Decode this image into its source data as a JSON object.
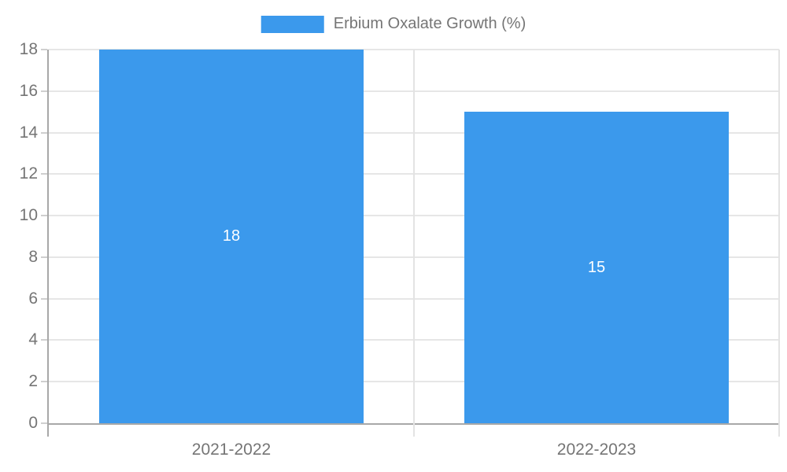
{
  "chart_data": {
    "type": "bar",
    "title": "Erbium Oxalate Growth (%)",
    "categories": [
      "2021-2022",
      "2022-2023"
    ],
    "series": [
      {
        "name": "Erbium Oxalate Growth (%)",
        "values": [
          18,
          15
        ]
      }
    ],
    "data_labels": [
      "18",
      "15"
    ],
    "xlabel": "",
    "ylabel": "",
    "ylim": [
      0,
      18
    ],
    "ytick_step": 2,
    "yticks": [
      0,
      2,
      4,
      6,
      8,
      10,
      12,
      14,
      16,
      18
    ],
    "grid": true,
    "legend_position": "top-center",
    "colors": {
      "bar": "#3B99EC",
      "data_label": "#FFFFFF",
      "axis_line": "#A8A8A8",
      "grid_line": "#E6E6E6",
      "tick_line": "#CFCFCF",
      "text": "#757575",
      "background": "#FFFFFF"
    }
  }
}
